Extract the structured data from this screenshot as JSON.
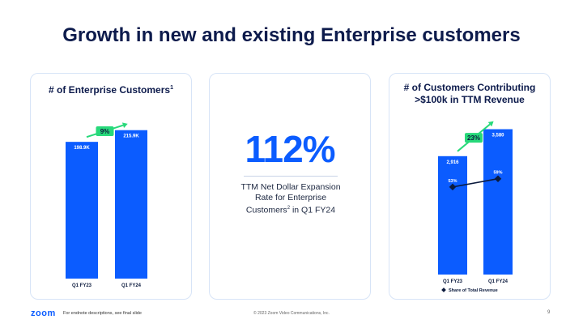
{
  "title": "Growth in new and existing Enterprise customers",
  "colors": {
    "bar": "#0b5cff",
    "growth": "#27d97a",
    "title": "#0d1b4c"
  },
  "panel1": {
    "title": "# of Enterprise Customers",
    "title_sup": "1"
  },
  "panel2": {
    "value": "112%",
    "desc_line1": "TTM Net Dollar Expansion",
    "desc_line2": "Rate for Enterprise",
    "desc_line3_a": "Customers",
    "desc_line3_sup": "2",
    "desc_line3_b": " in Q1 FY24"
  },
  "panel3": {
    "title_line1": "# of Customers Contributing",
    "title_line2": ">$100k in TTM Revenue"
  },
  "chart_data": [
    {
      "type": "bar",
      "title": "# of Enterprise Customers",
      "categories": [
        "Q1 FY23",
        "Q1 FY24"
      ],
      "values": [
        198.9,
        215.9
      ],
      "value_labels": [
        "198.9K",
        "215.9K"
      ],
      "ylim": [
        0,
        225
      ],
      "growth_label": "9%"
    },
    {
      "type": "bar",
      "title": "# of Customers Contributing >$100k in TTM Revenue",
      "categories": [
        "Q1 FY23",
        "Q1 FY24"
      ],
      "values": [
        2916,
        3580
      ],
      "value_labels": [
        "2,916",
        "3,580"
      ],
      "ylim": [
        0,
        3750
      ],
      "growth_label": "23%",
      "secondary_series": {
        "name": "Share of Total Revenue",
        "type": "line",
        "values": [
          53,
          59
        ],
        "labels": [
          "53%",
          "59%"
        ],
        "ylim": [
          0,
          100
        ]
      },
      "legend": "bottom"
    }
  ],
  "footer": {
    "logo": "zoom",
    "note": "For endnote descriptions, see final slide",
    "copyright": "© 2023 Zoom Video Communications, Inc.",
    "page": "9"
  }
}
